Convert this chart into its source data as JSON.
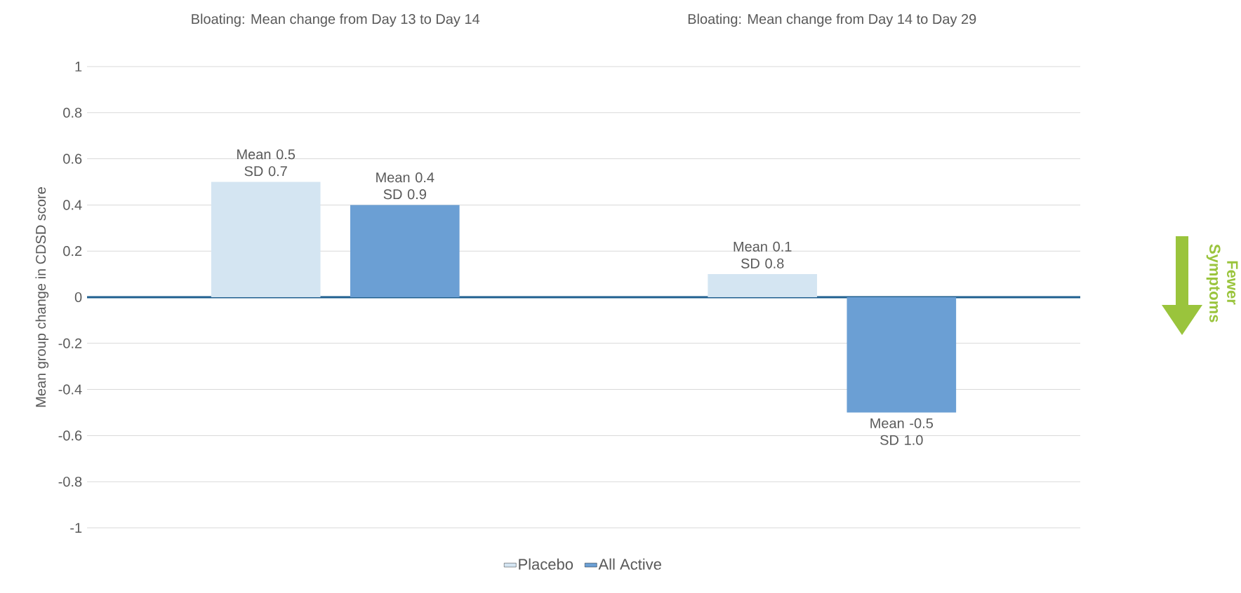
{
  "chart_data": {
    "type": "bar",
    "ylabel": "Mean group change in CDSD score",
    "categories": [
      "Bloating: Mean change from Day 13 to Day 14",
      "Bloating: Mean change from Day 14 to Day 29"
    ],
    "series": [
      {
        "name": "Placebo",
        "color": "#d4e5f2",
        "values": [
          0.5,
          0.1
        ],
        "value_labels": [
          "Mean 0.5 SD 0.7",
          "Mean 0.1 SD 0.8"
        ]
      },
      {
        "name": "All Active",
        "color": "#6b9fd4",
        "values": [
          0.4,
          -0.5
        ],
        "value_labels": [
          "Mean 0.4 SD 0.9",
          "Mean -0.5 SD 1.0"
        ]
      }
    ],
    "ylim": [
      -1,
      1
    ],
    "yticks": [
      -1,
      -0.8,
      -0.6,
      -0.4,
      -0.2,
      0,
      0.2,
      0.4,
      0.6,
      0.8,
      1
    ],
    "grid": "y",
    "legend": "bottom",
    "ref_lines": [
      {
        "axis": "y",
        "value": 0,
        "color": "#1f5f8f"
      }
    ],
    "annotations": [
      "Fewer Symptoms"
    ]
  }
}
